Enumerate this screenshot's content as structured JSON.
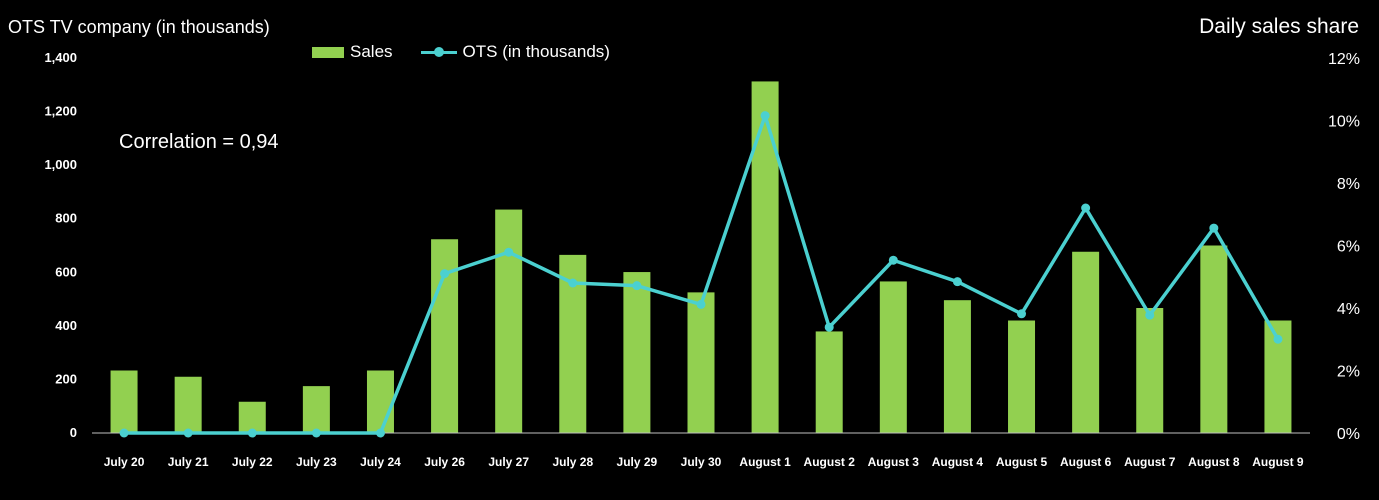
{
  "chart_data": {
    "type": "bar",
    "left_axis_title": "OTS TV company (in thousands)",
    "right_axis_title": "Daily sales share",
    "annotation": "Correlation = 0,94",
    "categories": [
      "July 20",
      "July 21",
      "July 22",
      "July 23",
      "July 24",
      "July 26",
      "July 27",
      "July 28",
      "July 29",
      "July 30",
      "August 1",
      "August 2",
      "August 3",
      "August 4",
      "August 5",
      "August 6",
      "August 7",
      "August 8",
      "August 9"
    ],
    "series": [
      {
        "name": "Sales",
        "type": "bar",
        "axis": "right",
        "color": "#92d050",
        "values": [
          2.0,
          1.8,
          1.0,
          1.5,
          2.0,
          6.2,
          7.15,
          5.7,
          5.15,
          4.5,
          11.25,
          3.25,
          4.85,
          4.25,
          3.6,
          5.8,
          4.0,
          6.0,
          3.6
        ]
      },
      {
        "name": "OTS (in thousands)",
        "type": "line",
        "axis": "left",
        "color": "#4bd0d0",
        "values": [
          0,
          0,
          0,
          0,
          0,
          595,
          675,
          560,
          550,
          480,
          1185,
          395,
          645,
          565,
          445,
          840,
          440,
          765,
          350
        ]
      }
    ],
    "left_axis": {
      "min": 0,
      "max": 1400,
      "ticks": [
        "0",
        "200",
        "400",
        "600",
        "800",
        "1,000",
        "1,200",
        "1,400"
      ]
    },
    "right_axis": {
      "min": 0,
      "max": 12,
      "ticks": [
        "0%",
        "2%",
        "4%",
        "6%",
        "8%",
        "10%",
        "12%"
      ]
    },
    "legend_position": "top-left",
    "grid": false
  }
}
